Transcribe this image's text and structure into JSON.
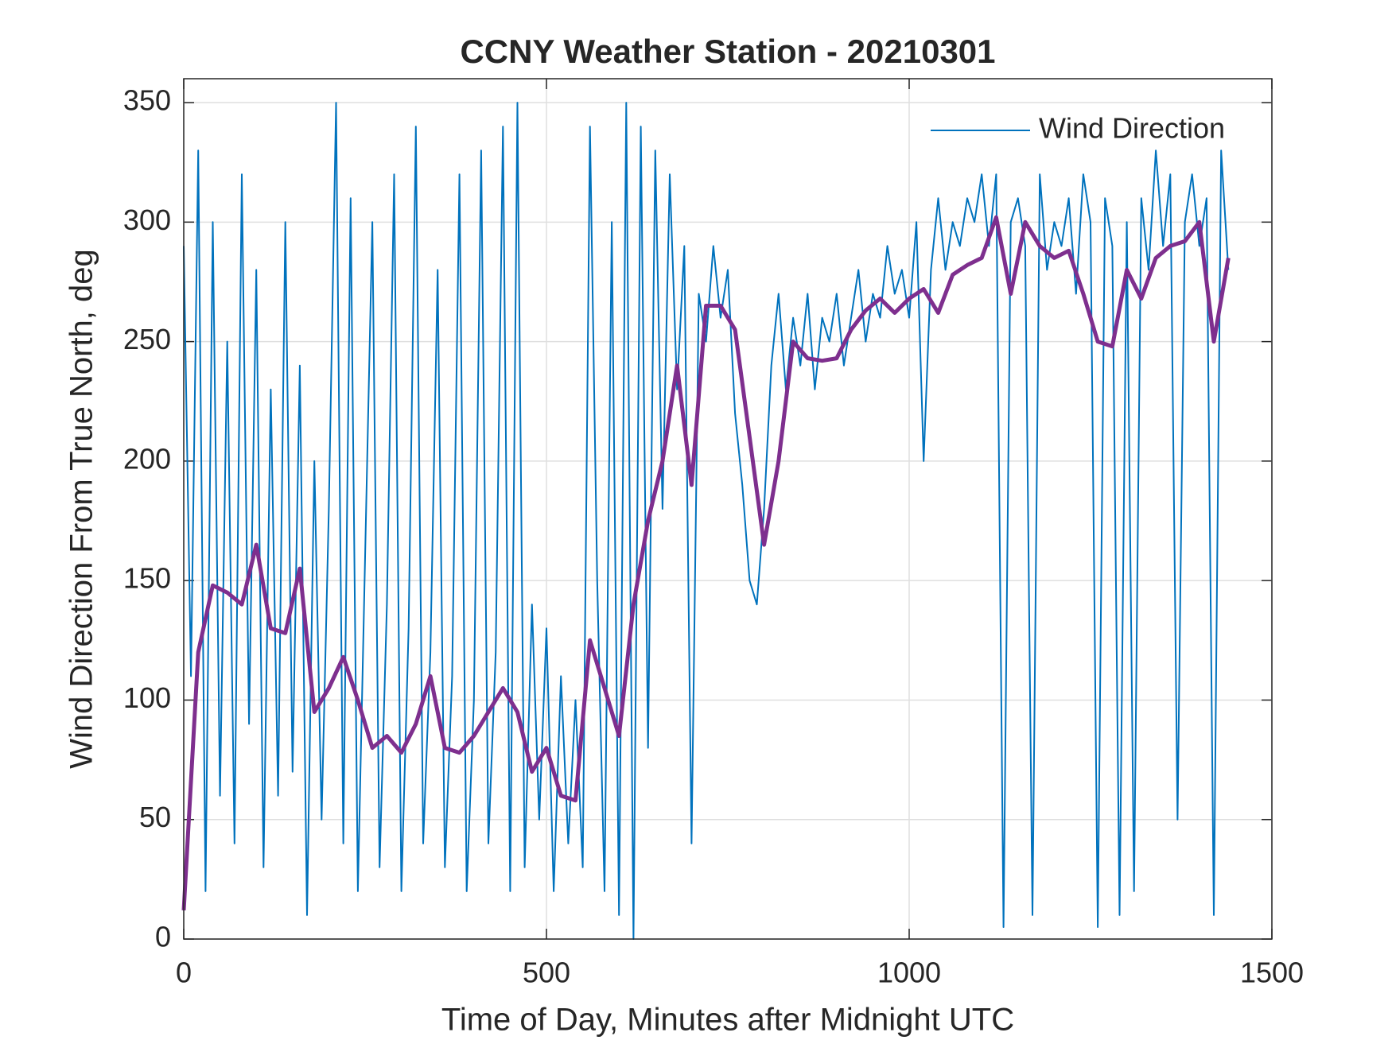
{
  "chart_data": {
    "type": "line",
    "title": "CCNY Weather Station - 20210301",
    "x_label": "Time of Day, Minutes after Midnight UTC",
    "y_label": "Wind Direction From True North, deg",
    "xlim": [
      0,
      1500
    ],
    "xticks": [
      0,
      500,
      1000,
      1500
    ],
    "ylim": [
      0,
      360
    ],
    "yticks": [
      0,
      50,
      100,
      150,
      200,
      250,
      300,
      350
    ],
    "grid": true,
    "legend": "upper right",
    "series": [
      {
        "name": "Wind Direction",
        "color": "#0072bd",
        "x": [
          0,
          10,
          20,
          30,
          40,
          50,
          60,
          70,
          80,
          90,
          100,
          110,
          120,
          130,
          140,
          150,
          160,
          170,
          180,
          190,
          200,
          210,
          220,
          230,
          240,
          250,
          260,
          270,
          280,
          290,
          300,
          310,
          320,
          330,
          340,
          350,
          360,
          370,
          380,
          390,
          400,
          410,
          420,
          430,
          440,
          450,
          460,
          470,
          480,
          490,
          500,
          510,
          520,
          530,
          540,
          550,
          560,
          570,
          580,
          590,
          600,
          610,
          620,
          630,
          640,
          650,
          660,
          670,
          680,
          690,
          700,
          710,
          720,
          730,
          740,
          750,
          760,
          770,
          780,
          790,
          800,
          810,
          820,
          830,
          840,
          850,
          860,
          870,
          880,
          890,
          900,
          910,
          920,
          930,
          940,
          950,
          960,
          970,
          980,
          990,
          1000,
          1010,
          1020,
          1030,
          1040,
          1050,
          1060,
          1070,
          1080,
          1090,
          1100,
          1110,
          1120,
          1130,
          1140,
          1150,
          1160,
          1170,
          1180,
          1190,
          1200,
          1210,
          1220,
          1230,
          1240,
          1250,
          1260,
          1270,
          1280,
          1290,
          1300,
          1310,
          1320,
          1330,
          1340,
          1350,
          1360,
          1370,
          1380,
          1390,
          1400,
          1410,
          1420,
          1430,
          1440
        ],
        "values": [
          290,
          110,
          330,
          20,
          300,
          60,
          250,
          40,
          320,
          90,
          280,
          30,
          230,
          60,
          300,
          70,
          240,
          10,
          200,
          50,
          180,
          350,
          40,
          310,
          20,
          160,
          300,
          30,
          140,
          320,
          20,
          130,
          340,
          40,
          120,
          280,
          30,
          110,
          320,
          20,
          100,
          330,
          40,
          120,
          340,
          20,
          350,
          30,
          140,
          50,
          130,
          20,
          110,
          40,
          100,
          30,
          340,
          150,
          20,
          300,
          10,
          350,
          0,
          340,
          80,
          330,
          180,
          320,
          230,
          290,
          40,
          270,
          250,
          290,
          260,
          280,
          220,
          190,
          150,
          140,
          180,
          240,
          270,
          230,
          260,
          240,
          270,
          230,
          260,
          250,
          270,
          240,
          260,
          280,
          250,
          270,
          260,
          290,
          270,
          280,
          260,
          300,
          200,
          280,
          310,
          280,
          300,
          290,
          310,
          300,
          320,
          290,
          320,
          5,
          300,
          310,
          290,
          10,
          320,
          280,
          300,
          290,
          310,
          270,
          320,
          300,
          5,
          310,
          290,
          10,
          300,
          20,
          310,
          280,
          330,
          290,
          320,
          50,
          300,
          320,
          290,
          310,
          10,
          330,
          280
        ]
      },
      {
        "color": "#7e2f8e",
        "x": [
          0,
          20,
          40,
          60,
          80,
          100,
          120,
          140,
          160,
          180,
          200,
          220,
          240,
          260,
          280,
          300,
          320,
          340,
          360,
          380,
          400,
          420,
          440,
          460,
          480,
          500,
          520,
          540,
          560,
          580,
          600,
          620,
          640,
          660,
          680,
          700,
          720,
          740,
          760,
          780,
          800,
          820,
          840,
          860,
          880,
          900,
          920,
          940,
          960,
          980,
          1000,
          1020,
          1040,
          1060,
          1080,
          1100,
          1120,
          1140,
          1160,
          1180,
          1200,
          1220,
          1240,
          1260,
          1280,
          1300,
          1320,
          1340,
          1360,
          1380,
          1400,
          1420,
          1440
        ],
        "values": [
          12,
          120,
          148,
          145,
          140,
          165,
          130,
          128,
          155,
          95,
          105,
          118,
          100,
          80,
          85,
          78,
          90,
          110,
          80,
          78,
          85,
          95,
          105,
          95,
          70,
          80,
          60,
          58,
          125,
          105,
          85,
          140,
          175,
          200,
          240,
          190,
          265,
          265,
          255,
          210,
          165,
          200,
          250,
          243,
          242,
          243,
          255,
          263,
          268,
          262,
          268,
          272,
          262,
          278,
          282,
          285,
          302,
          270,
          300,
          290,
          285,
          288,
          270,
          250,
          248,
          280,
          268,
          285,
          290,
          292,
          300,
          250,
          285
        ]
      }
    ]
  }
}
